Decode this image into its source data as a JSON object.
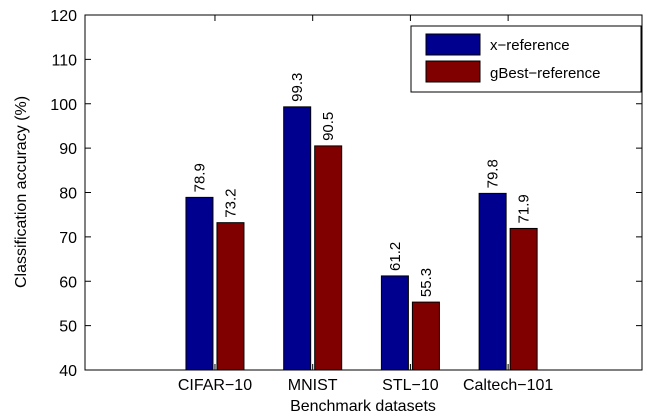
{
  "chart_data": {
    "type": "bar",
    "title": "",
    "xlabel": "Benchmark datasets",
    "ylabel": "Classification accuracy (%)",
    "ylim": [
      40,
      120
    ],
    "yticks": [
      40,
      50,
      60,
      70,
      80,
      90,
      100,
      110,
      120
    ],
    "categories": [
      "CIFAR−10",
      "MNIST",
      "STL−10",
      "Caltech−101"
    ],
    "series": [
      {
        "name": "x−reference",
        "color": "#00008f",
        "values": [
          78.9,
          99.3,
          61.2,
          79.8
        ],
        "labels": [
          "78.9",
          "99.3",
          "61.2",
          "79.8"
        ]
      },
      {
        "name": "gBest−reference",
        "color": "#800000",
        "values": [
          73.2,
          90.5,
          55.3,
          71.9
        ],
        "labels": [
          "73.2",
          "90.5",
          "55.3",
          "71.9"
        ]
      }
    ],
    "grid": false,
    "legend_position": "top-right"
  }
}
